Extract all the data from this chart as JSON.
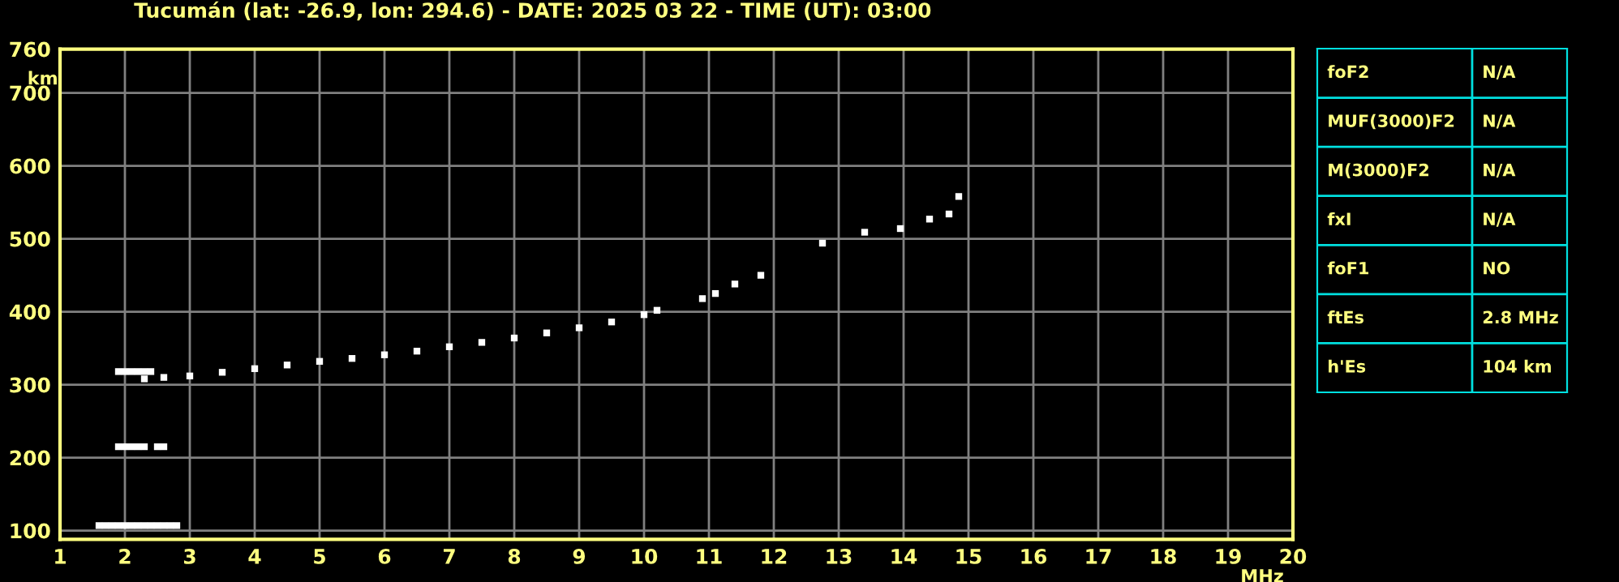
{
  "chart_data": [
    {
      "type": "scatter",
      "title": "Tucumán (lat: -26.9, lon: 294.6) - DATE: 2025 03 22 - TIME (UT): 03:00",
      "xlabel": "MHz",
      "ylabel": "km",
      "marker": "square",
      "grid": true,
      "legend": false,
      "xlim": [
        1,
        20
      ],
      "ylim": [
        88,
        760
      ],
      "xticks": [
        1,
        2,
        3,
        4,
        5,
        6,
        7,
        8,
        9,
        10,
        11,
        12,
        13,
        14,
        15,
        16,
        17,
        18,
        19,
        20
      ],
      "yticks": [
        100,
        200,
        300,
        400,
        500,
        600,
        700,
        760
      ],
      "series": [
        {
          "color": "#ffffff",
          "x": [
            2.3,
            2.6,
            3.0,
            3.5,
            4.0,
            4.5,
            5.0,
            5.5,
            6.0,
            6.5,
            7.0,
            7.5,
            8.0,
            8.5,
            9.0,
            9.5,
            10.0,
            10.2
          ],
          "values": [
            308,
            310,
            312,
            317,
            322,
            327,
            332,
            336,
            341,
            346,
            352,
            358,
            364,
            371,
            378,
            386,
            396,
            402
          ]
        },
        {
          "color": "#ffffff",
          "x": [
            1.9,
            2.0,
            2.1,
            2.2,
            2.3,
            2.4
          ],
          "values": [
            318,
            318,
            318,
            318,
            318,
            318
          ]
        },
        {
          "color": "#ffffff",
          "x": [
            1.9,
            2.0,
            2.1,
            2.2,
            2.3,
            2.5,
            2.6
          ],
          "values": [
            215,
            215,
            215,
            215,
            215,
            215,
            215
          ]
        },
        {
          "color": "#ffffff",
          "x": [
            1.6,
            1.7,
            1.8,
            1.9,
            2.0,
            2.1,
            2.2,
            2.3,
            2.4,
            2.5,
            2.6,
            2.7,
            2.8
          ],
          "values": [
            107,
            107,
            107,
            107,
            107,
            107,
            107,
            107,
            107,
            107,
            107,
            107,
            107
          ]
        },
        {
          "color": "#ffffff",
          "x": [
            10.9,
            11.1,
            11.4,
            11.8,
            12.75,
            13.4,
            13.95,
            14.4,
            14.7,
            14.85
          ],
          "values": [
            418,
            425,
            438,
            450,
            494,
            509,
            514,
            527,
            534,
            558
          ]
        }
      ]
    },
    {
      "type": "other",
      "annotations": [
        "foF2",
        "N/A",
        "MUF(3000)F2",
        "N/A",
        "M(3000)F2",
        "N/A",
        "fxI",
        "N/A",
        "foF1",
        "NO",
        "ftEs",
        "2.8 MHz",
        "h'Es",
        "104 km"
      ]
    }
  ]
}
